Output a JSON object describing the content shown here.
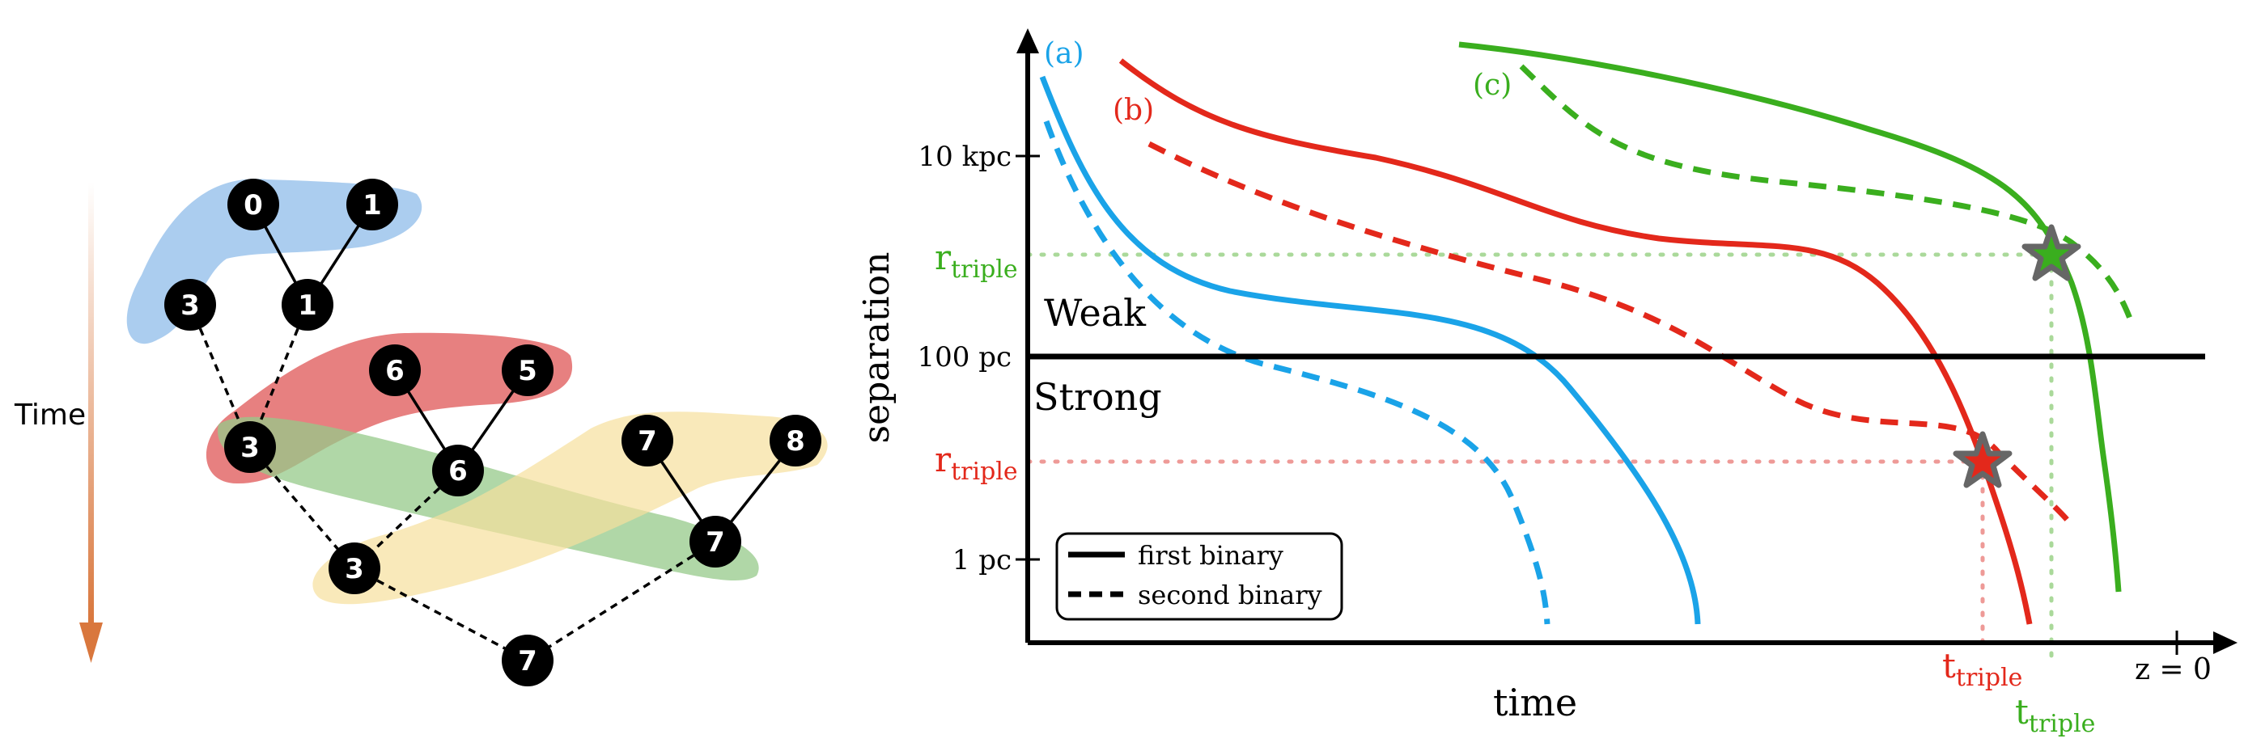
{
  "tree": {
    "time_label": "Time",
    "nodes": [
      {
        "id": "n0",
        "label": "0"
      },
      {
        "id": "n1top",
        "label": "1"
      },
      {
        "id": "n3a",
        "label": "3"
      },
      {
        "id": "n1mid",
        "label": "1"
      },
      {
        "id": "n6top",
        "label": "6"
      },
      {
        "id": "n5",
        "label": "5"
      },
      {
        "id": "n3b",
        "label": "3"
      },
      {
        "id": "n6mid",
        "label": "6"
      },
      {
        "id": "n7top",
        "label": "7"
      },
      {
        "id": "n8",
        "label": "8"
      },
      {
        "id": "n3c",
        "label": "3"
      },
      {
        "id": "n7mid",
        "label": "7"
      },
      {
        "id": "n7bot",
        "label": "7"
      }
    ],
    "colors": {
      "blue_group": "#9cc4ec",
      "red_group": "#e36a6a",
      "green_group": "#96c98a",
      "yellow_group": "#f6df9c",
      "time_arrow": "#d9773d",
      "node": "#000000",
      "node_text": "#ffffff"
    }
  },
  "plot": {
    "xlabel": "time",
    "ylabel": "separation",
    "z_label": "z = 0",
    "yticks": [
      "10 kpc",
      "100 pc",
      "1 pc"
    ],
    "r_triple": {
      "base": "r",
      "sub": "triple"
    },
    "t_triple": {
      "base": "t",
      "sub": "triple"
    },
    "region_weak": "Weak",
    "region_strong": "Strong",
    "case_labels": [
      "(a)",
      "(b)",
      "(c)"
    ],
    "legend": {
      "first": "first binary",
      "second": "second binary"
    },
    "colors": {
      "a": "#1aa3e8",
      "b": "#e3281b",
      "c": "#3aae1e",
      "b_faint": "#ee9a97",
      "c_faint": "#aad99a",
      "star": "#666666"
    }
  }
}
